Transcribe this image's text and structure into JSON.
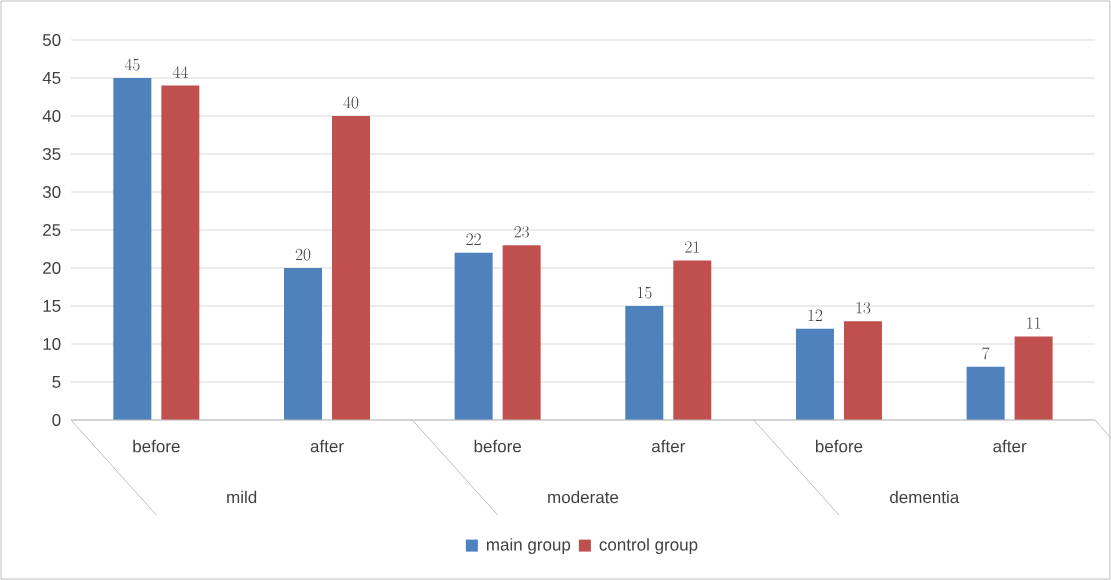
{
  "chart_data": {
    "type": "bar",
    "categories": [
      "before",
      "after",
      "before",
      "after",
      "before",
      "after"
    ],
    "series": [
      {
        "name": "main group",
        "color": "#4f81bd",
        "values": [
          45,
          20,
          22,
          15,
          12,
          7
        ]
      },
      {
        "name": "control group",
        "color": "#c0504d",
        "values": [
          44,
          40,
          23,
          21,
          13,
          11
        ]
      }
    ],
    "annotations": [
      "mild",
      "moderate",
      "dementia"
    ],
    "ylim": [
      0,
      50
    ],
    "yticks": [
      0,
      5,
      10,
      15,
      20,
      25,
      30,
      35,
      40,
      45,
      50
    ],
    "grid": "y",
    "legend": "bottom",
    "data_labels": true
  }
}
